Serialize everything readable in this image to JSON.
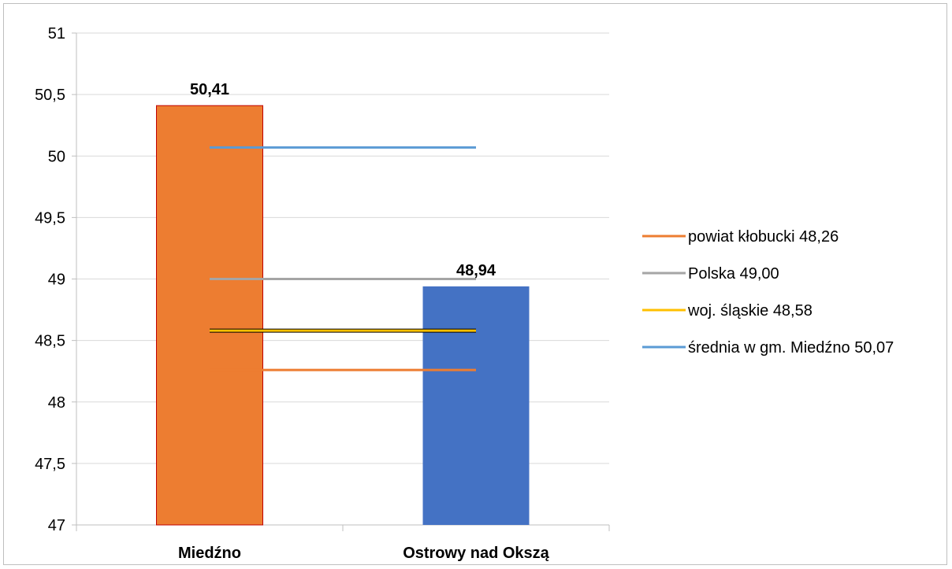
{
  "chart_data": {
    "type": "bar",
    "categories": [
      "Miedźno",
      "Ostrowy nad Okszą"
    ],
    "values": [
      50.41,
      48.94
    ],
    "value_labels": [
      "50,41",
      "48,94"
    ],
    "bar_colors": [
      "#ED7D31",
      "#4472C4"
    ],
    "ylim": [
      47,
      51
    ],
    "yticks": [
      47,
      47.5,
      48,
      48.5,
      49,
      49.5,
      50,
      50.5,
      51
    ],
    "ytick_labels": [
      "47",
      "47,5",
      "48",
      "48,5",
      "49",
      "49,5",
      "50",
      "50,5",
      "51"
    ],
    "grid": true,
    "legend_position": "right",
    "reference_lines": [
      {
        "name": "powiat kłobucki 48,26",
        "value": 48.26,
        "color": "#ED7D31"
      },
      {
        "name": "Polska 49,00",
        "value": 49.0,
        "color": "#A5A5A5"
      },
      {
        "name": "woj. śląskie 48,58",
        "value": 48.58,
        "color": "#FFC000"
      },
      {
        "name": "średnia w gm. Miedźno 50,07",
        "value": 50.07,
        "color": "#5B9BD5"
      }
    ],
    "title": "",
    "xlabel": "",
    "ylabel": ""
  }
}
